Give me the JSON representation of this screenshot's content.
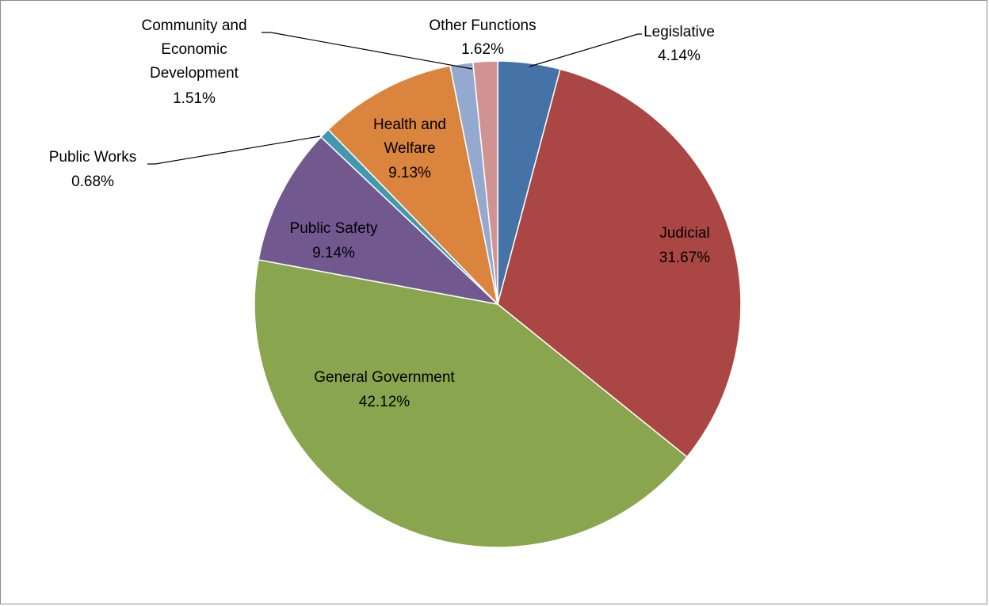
{
  "chart_data": {
    "type": "pie",
    "title": "",
    "slices": [
      {
        "name": "Legislative",
        "value": 4.14,
        "label": "4.14%",
        "color": "#4572A7"
      },
      {
        "name": "Judicial",
        "value": 31.67,
        "label": "31.67%",
        "color": "#AA4643"
      },
      {
        "name": "General Government",
        "value": 42.12,
        "label": "42.12%",
        "color": "#89A54E"
      },
      {
        "name": "Public Safety",
        "value": 9.14,
        "label": "9.14%",
        "color": "#71588F"
      },
      {
        "name": "Public Works",
        "value": 0.68,
        "label": "0.68%",
        "color": "#4198AF"
      },
      {
        "name": "Health and Welfare",
        "value": 9.13,
        "label": "9.13%",
        "color": "#DB843D"
      },
      {
        "name": "Community and Economic Development",
        "value": 1.51,
        "label": "1.51%",
        "color": "#93A9CF"
      },
      {
        "name": "Other Functions",
        "value": 1.62,
        "label": "1.62%",
        "color": "#D19392"
      }
    ],
    "labels": {
      "legislative": {
        "name": "Legislative",
        "pct": "4.14%"
      },
      "judicial": {
        "name": "Judicial",
        "pct": "31.67%"
      },
      "general_government": {
        "name": "General Government",
        "pct": "42.12%"
      },
      "public_safety": {
        "name": "Public Safety",
        "pct": "9.14%"
      },
      "public_works": {
        "name": "Public Works",
        "pct": "0.68%"
      },
      "health_and_welfare": {
        "line1": "Health and",
        "line2": "Welfare",
        "pct": "9.13%"
      },
      "community_development": {
        "line1": "Community and",
        "line2": "Economic",
        "line3": "Development",
        "pct": "1.51%"
      },
      "other_functions": {
        "name": "Other Functions",
        "pct": "1.62%"
      }
    },
    "legend": "none"
  }
}
